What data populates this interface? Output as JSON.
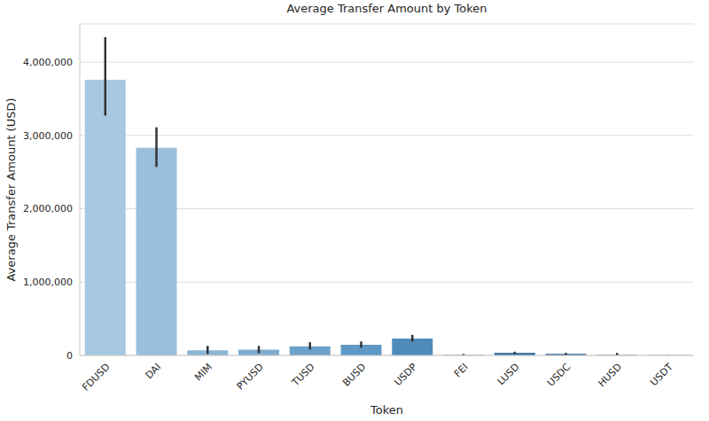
{
  "chart_data": {
    "type": "bar",
    "title": "Average Transfer Amount by Token",
    "x_label": "Token",
    "y_label": "Average Transfer Amount (USD)",
    "categories": [
      "FDUSD",
      "DAI",
      "MIM",
      "PYUSD",
      "TUSD",
      "BUSD",
      "USDP",
      "FEI",
      "LUSD",
      "USDC",
      "HUSD",
      "USDT"
    ],
    "values": [
      3760000,
      2830000,
      68000,
      80000,
      125000,
      145000,
      230000,
      5000,
      35000,
      20000,
      5000,
      3000
    ],
    "error_low": [
      3270000,
      2570000,
      20000,
      30000,
      80000,
      105000,
      190000,
      0,
      20000,
      5000,
      0,
      1000
    ],
    "error_high": [
      4340000,
      3110000,
      130000,
      130000,
      180000,
      190000,
      280000,
      20000,
      50000,
      35000,
      35000,
      5000
    ],
    "colors": [
      "#a6c8e0",
      "#98c0dc",
      "#8ab6d6",
      "#7cadd1",
      "#6da3cb",
      "#5e98c4",
      "#4f8bba",
      "#4680b0",
      "#4077a5",
      "#3a6d99",
      "#35648d",
      "#305b82"
    ],
    "ylim": [
      0,
      4520000
    ],
    "yticks": [
      0,
      {
        "value": 1000000,
        "label": "1,000,000"
      },
      {
        "value": 2000000,
        "label": "2,000,000"
      },
      {
        "value": 3000000,
        "label": "3,000,000"
      },
      {
        "value": 4000000,
        "label": "4,000,000"
      }
    ],
    "grid": true
  }
}
